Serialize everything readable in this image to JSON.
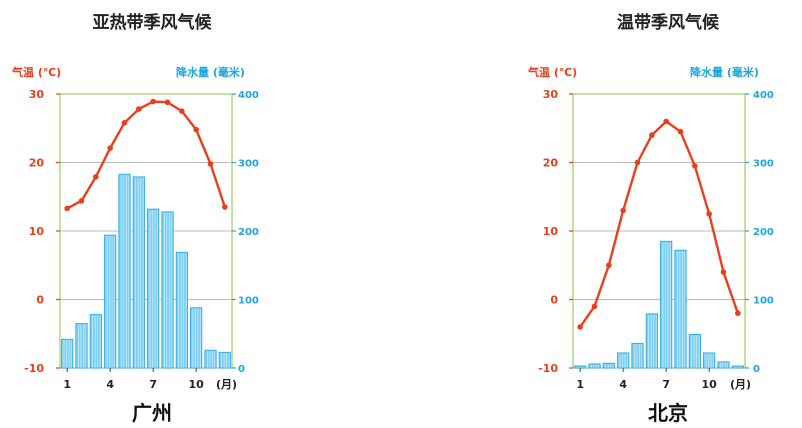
{
  "chart_data": [
    {
      "type": "bar+line",
      "title": "亚热带季风气候",
      "city": "广州",
      "left_axis_label": "气温",
      "left_axis_unit": "(℃)",
      "right_axis_label": "降水量",
      "right_axis_unit": "(毫米)",
      "x_unit": "(月)",
      "x_ticks": [
        "1",
        "4",
        "7",
        "10"
      ],
      "y_ticks_left": [
        "30",
        "20",
        "10",
        "0",
        "-10"
      ],
      "y_ticks_right": [
        "400",
        "300",
        "200",
        "100",
        "0"
      ],
      "ylim_left": [
        -10,
        30
      ],
      "ylim_right": [
        0,
        400
      ],
      "months": [
        1,
        2,
        3,
        4,
        5,
        6,
        7,
        8,
        9,
        10,
        11,
        12
      ],
      "temperature": [
        13.3,
        14.4,
        17.9,
        22.1,
        25.8,
        27.8,
        28.9,
        28.8,
        27.5,
        24.8,
        19.8,
        13.5
      ],
      "precipitation": [
        42,
        65,
        78,
        194,
        283,
        279,
        232,
        228,
        169,
        88,
        26,
        23
      ],
      "colors": {
        "temp": "#e8401c",
        "precip": "#1ea6dc",
        "grid": "#bbbbbb",
        "frame": "#9ccc65"
      }
    },
    {
      "type": "bar+line",
      "title": "温带季风气候",
      "city": "北京",
      "left_axis_label": "气温",
      "left_axis_unit": "(℃)",
      "right_axis_label": "降水量",
      "right_axis_unit": "(毫米)",
      "x_unit": "(月)",
      "x_ticks": [
        "1",
        "4",
        "7",
        "10"
      ],
      "y_ticks_left": [
        "30",
        "20",
        "10",
        "0",
        "-10"
      ],
      "y_ticks_right": [
        "400",
        "300",
        "200",
        "100",
        "0"
      ],
      "ylim_left": [
        -10,
        30
      ],
      "ylim_right": [
        0,
        400
      ],
      "months": [
        1,
        2,
        3,
        4,
        5,
        6,
        7,
        8,
        9,
        10,
        11,
        12
      ],
      "temperature": [
        -4.0,
        -1.0,
        5.0,
        13.0,
        20.0,
        24.0,
        26.0,
        24.5,
        19.5,
        12.5,
        4.0,
        -2.0
      ],
      "precipitation": [
        3,
        6,
        7,
        22,
        36,
        79,
        185,
        172,
        49,
        22,
        9,
        3
      ],
      "colors": {
        "temp": "#e8401c",
        "precip": "#1ea6dc",
        "grid": "#bbbbbb",
        "frame": "#9ccc65"
      }
    }
  ]
}
